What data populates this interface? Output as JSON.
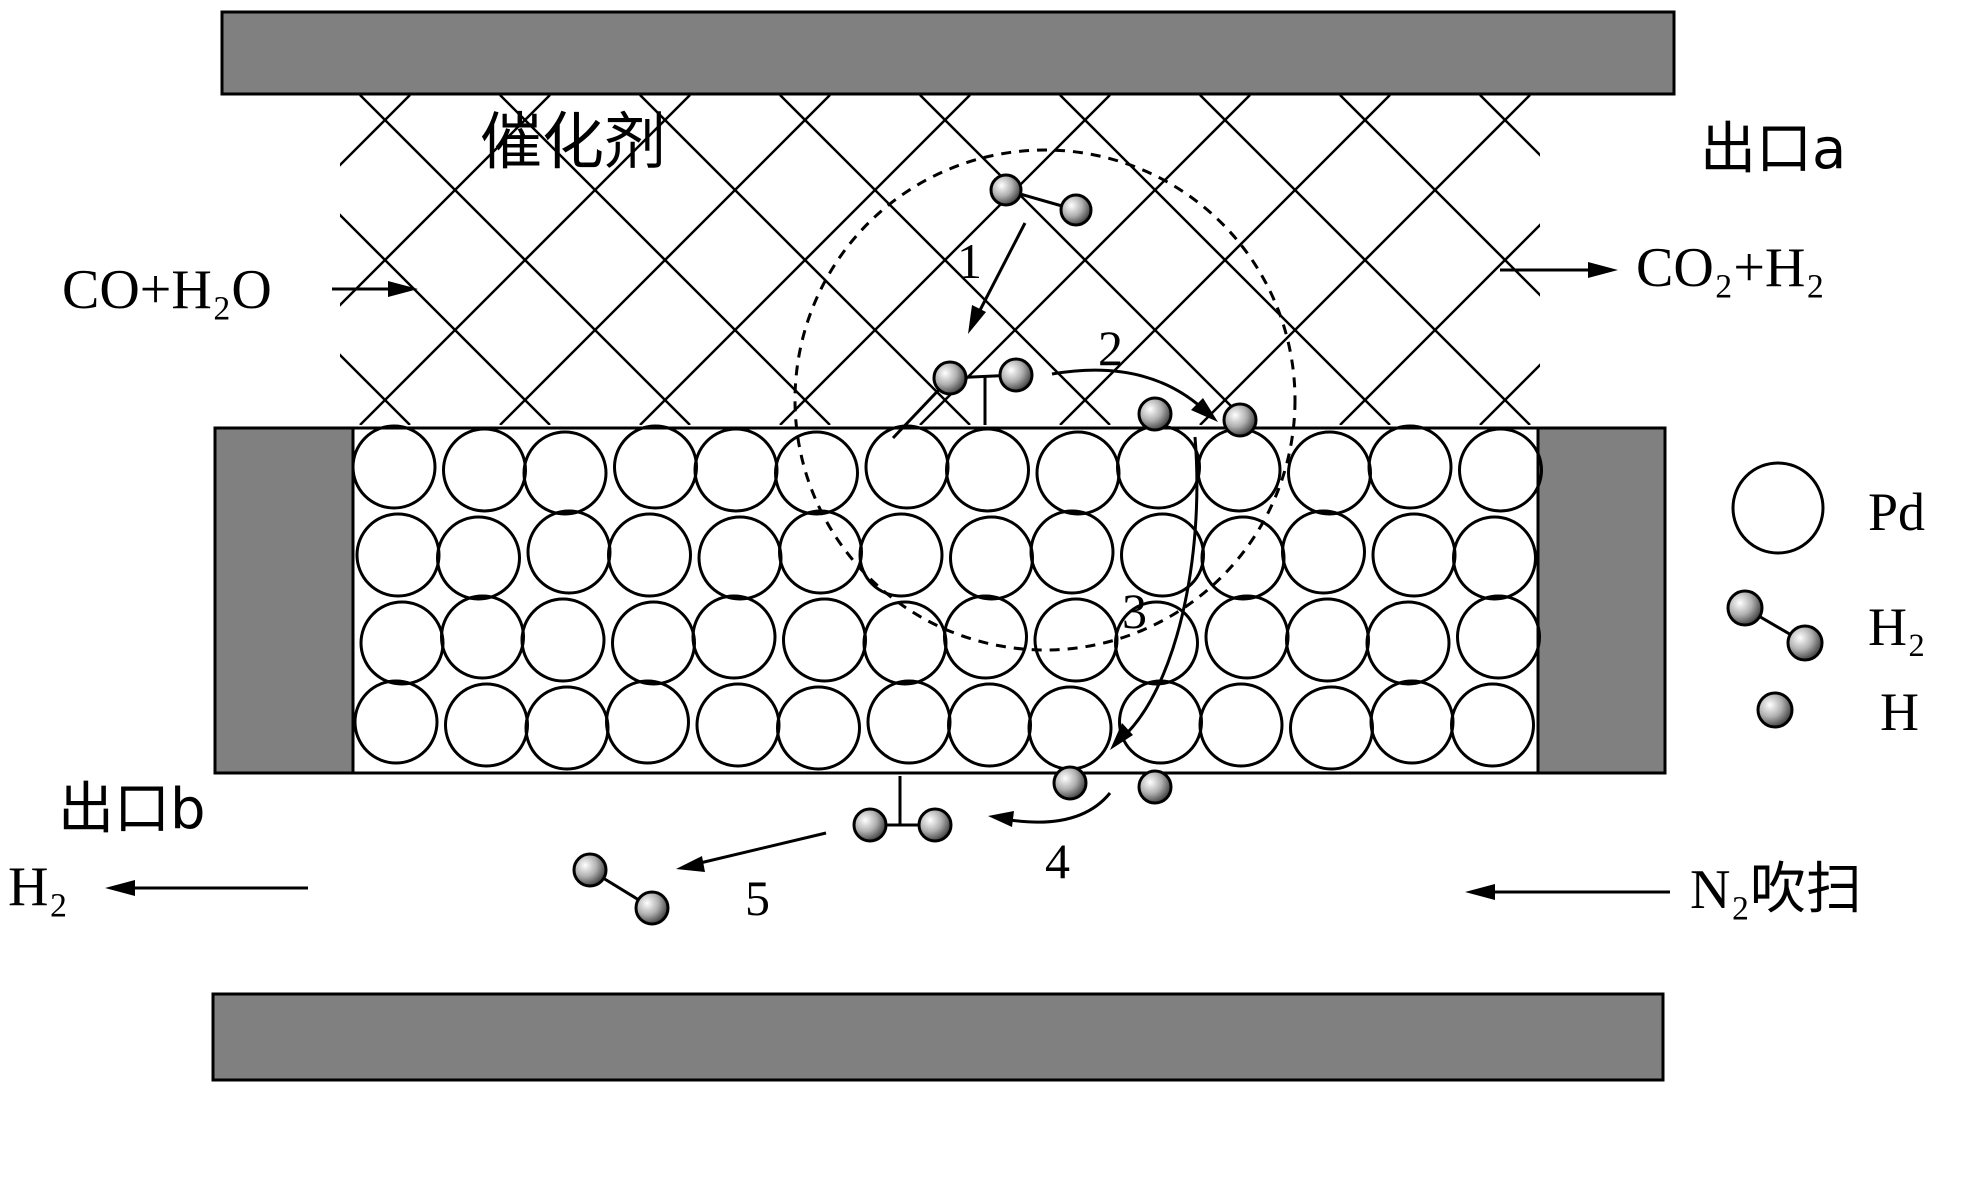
{
  "labels": {
    "catalyst": "催化剂",
    "outlet_a": "出口a",
    "inlet_feed": "CO+H₂O",
    "outlet_a_product": "CO₂+H₂",
    "outlet_b": "出口b",
    "outlet_b_product": "H₂",
    "n2_sweep": "N₂吹扫"
  },
  "steps": [
    "1",
    "2",
    "3",
    "4",
    "5"
  ],
  "legend": {
    "pd": "Pd",
    "h2": "H₂",
    "h": "H"
  },
  "colors": {
    "wall_fill": "#808080",
    "stroke": "#000000",
    "atom_light": "#ffffff",
    "atom_dark": "#555555"
  }
}
